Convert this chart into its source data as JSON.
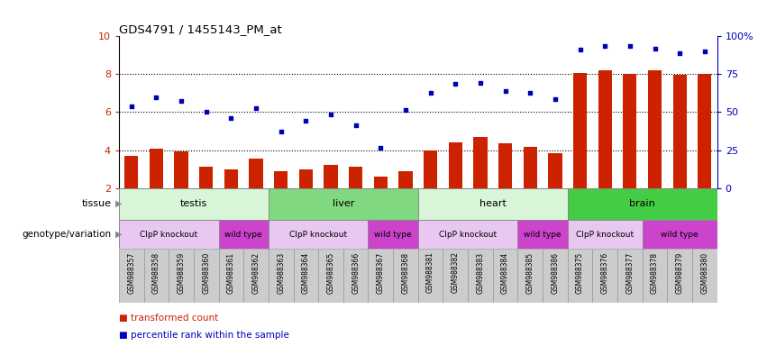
{
  "title": "GDS4791 / 1455143_PM_at",
  "samples": [
    "GSM988357",
    "GSM988358",
    "GSM988359",
    "GSM988360",
    "GSM988361",
    "GSM988362",
    "GSM988363",
    "GSM988364",
    "GSM988365",
    "GSM988366",
    "GSM988367",
    "GSM988368",
    "GSM988381",
    "GSM988382",
    "GSM988383",
    "GSM988384",
    "GSM988385",
    "GSM988386",
    "GSM988375",
    "GSM988376",
    "GSM988377",
    "GSM988378",
    "GSM988379",
    "GSM988380"
  ],
  "bar_values": [
    3.7,
    4.05,
    3.95,
    3.1,
    3.0,
    3.55,
    2.9,
    3.0,
    3.2,
    3.1,
    2.6,
    2.9,
    4.0,
    4.4,
    4.7,
    4.35,
    4.15,
    3.85,
    8.05,
    8.2,
    8.0,
    8.2,
    7.95,
    8.0
  ],
  "dot_values": [
    6.3,
    6.8,
    6.6,
    6.0,
    5.7,
    6.2,
    5.0,
    5.55,
    5.9,
    5.3,
    4.1,
    6.1,
    7.0,
    7.5,
    7.55,
    7.1,
    7.0,
    6.7,
    9.3,
    9.5,
    9.5,
    9.35,
    9.1,
    9.2
  ],
  "ylim_lo": 2,
  "ylim_hi": 10,
  "yticks": [
    2,
    4,
    6,
    8,
    10
  ],
  "ytick_labels_left": [
    "2",
    "4",
    "6",
    "8",
    "10"
  ],
  "ytick_labels_right": [
    "0",
    "25",
    "50",
    "75",
    "100%"
  ],
  "bar_color": "#cc2200",
  "dot_color": "#0000bb",
  "plot_bg_color": "#ffffff",
  "xticklabel_bg": "#d0d0d0",
  "tissues": [
    {
      "label": "testis",
      "start": 0,
      "end": 5,
      "color": "#d8f5d8"
    },
    {
      "label": "liver",
      "start": 6,
      "end": 11,
      "color": "#80d880"
    },
    {
      "label": "heart",
      "start": 12,
      "end": 17,
      "color": "#d8f5d8"
    },
    {
      "label": "brain",
      "start": 18,
      "end": 23,
      "color": "#44cc44"
    }
  ],
  "genotypes": [
    {
      "label": "ClpP knockout",
      "start": 0,
      "end": 3,
      "color": "#e8c8f0"
    },
    {
      "label": "wild type",
      "start": 4,
      "end": 5,
      "color": "#cc44cc"
    },
    {
      "label": "ClpP knockout",
      "start": 6,
      "end": 9,
      "color": "#e8c8f0"
    },
    {
      "label": "wild type",
      "start": 10,
      "end": 11,
      "color": "#cc44cc"
    },
    {
      "label": "ClpP knockout",
      "start": 12,
      "end": 15,
      "color": "#e8c8f0"
    },
    {
      "label": "wild type",
      "start": 16,
      "end": 17,
      "color": "#cc44cc"
    },
    {
      "label": "ClpP knockout",
      "start": 18,
      "end": 20,
      "color": "#e8c8f0"
    },
    {
      "label": "wild type",
      "start": 21,
      "end": 23,
      "color": "#cc44cc"
    }
  ],
  "legend_items": [
    {
      "color": "#cc2200",
      "label": "transformed count"
    },
    {
      "color": "#0000bb",
      "label": "percentile rank within the sample"
    }
  ]
}
